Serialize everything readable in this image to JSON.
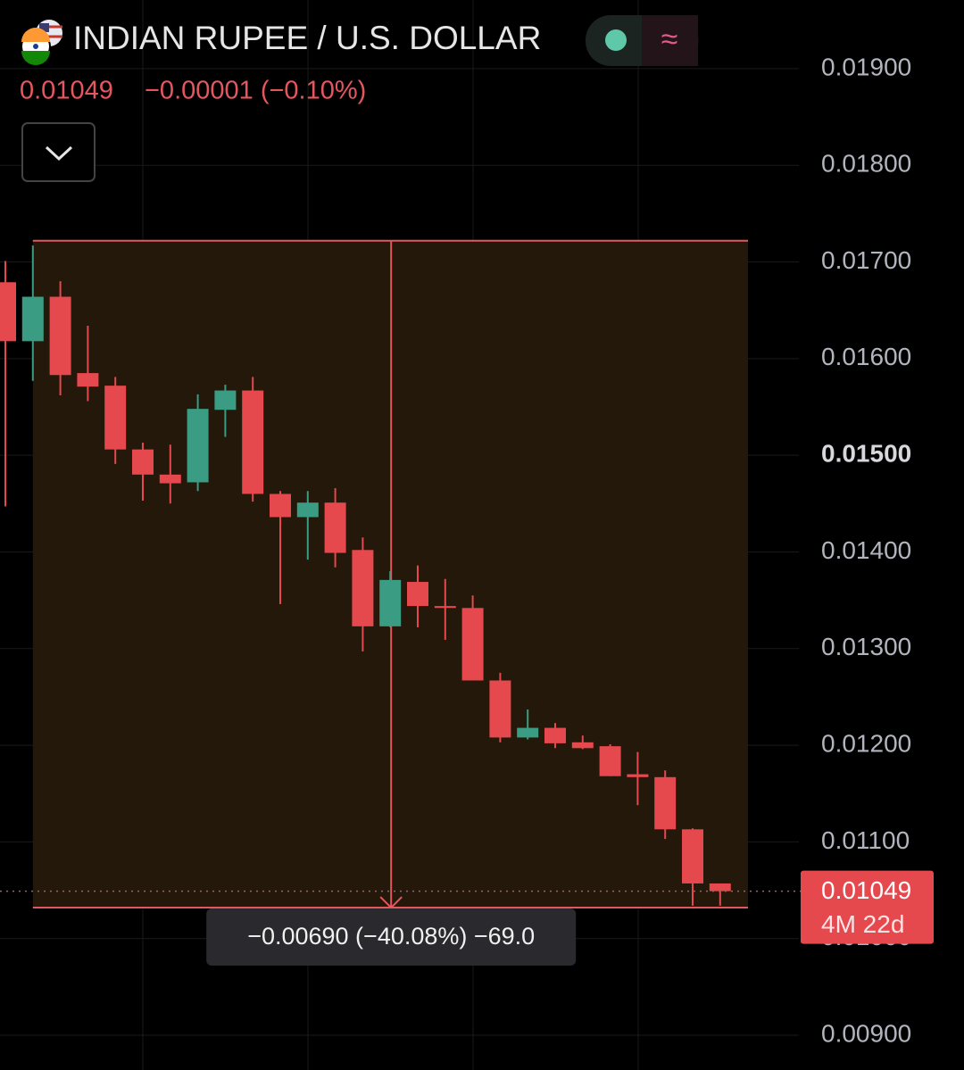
{
  "chart_data": {
    "type": "candlestick",
    "title": "INDIAN RUPEE / U.S. DOLLAR",
    "last_price": {
      "value": 0.01049,
      "label": "0.01049"
    },
    "change": "−0.00001 (−0.10%)",
    "countdown": "4M 22d",
    "measure": {
      "from": 0.01722,
      "to": 0.01032,
      "label": "−0.00690 (−40.08%) −69.0"
    },
    "up_color": "#3a9c82",
    "down_color": "#e5484d",
    "grid": true,
    "ylim": [
      0.00864,
      0.01971
    ],
    "yticks": [
      {
        "value": 0.019,
        "label": "0.01900"
      },
      {
        "value": 0.018,
        "label": "0.01800"
      },
      {
        "value": 0.017,
        "label": "0.01700"
      },
      {
        "value": 0.016,
        "label": "0.01600"
      },
      {
        "value": 0.015,
        "label": "0.01500"
      },
      {
        "value": 0.014,
        "label": "0.01400"
      },
      {
        "value": 0.013,
        "label": "0.01300"
      },
      {
        "value": 0.012,
        "label": "0.01200"
      },
      {
        "value": 0.011,
        "label": "0.01100"
      },
      {
        "value": 0.01,
        "label": "0.01000"
      },
      {
        "value": 0.009,
        "label": "0.00900"
      }
    ],
    "open": [
      0.01679,
      0.01618,
      0.01664,
      0.01585,
      0.01572,
      0.01506,
      0.0148,
      0.01472,
      0.01547,
      0.01567,
      0.0146,
      0.01436,
      0.01451,
      0.01402,
      0.01323,
      0.01369,
      0.01344,
      0.01342,
      0.01267,
      0.01208,
      0.01218,
      0.01203,
      0.01199,
      0.0117,
      0.01167,
      0.01113,
      0.01057
    ],
    "high": [
      0.01701,
      0.01717,
      0.0168,
      0.01634,
      0.01581,
      0.01513,
      0.01511,
      0.01563,
      0.01573,
      0.01581,
      0.01463,
      0.01463,
      0.01466,
      0.01415,
      0.0138,
      0.01386,
      0.01372,
      0.01355,
      0.01275,
      0.01237,
      0.01223,
      0.0121,
      0.01201,
      0.01193,
      0.01174,
      0.01114,
      0.01057
    ],
    "low": [
      0.01447,
      0.01577,
      0.01562,
      0.01556,
      0.01491,
      0.01453,
      0.0145,
      0.01463,
      0.01519,
      0.01452,
      0.01346,
      0.01392,
      0.01384,
      0.01297,
      0.01322,
      0.01322,
      0.01309,
      0.01267,
      0.01203,
      0.01206,
      0.01197,
      0.01196,
      0.01168,
      0.01138,
      0.01103,
      0.01034,
      0.01034
    ],
    "close": [
      0.01618,
      0.01664,
      0.01583,
      0.01571,
      0.01506,
      0.0148,
      0.01471,
      0.01548,
      0.01567,
      0.0146,
      0.01436,
      0.01451,
      0.01399,
      0.01323,
      0.01371,
      0.01344,
      0.01342,
      0.01267,
      0.01208,
      0.01218,
      0.01202,
      0.01197,
      0.01168,
      0.01167,
      0.01113,
      0.01057,
      0.01049
    ]
  }
}
